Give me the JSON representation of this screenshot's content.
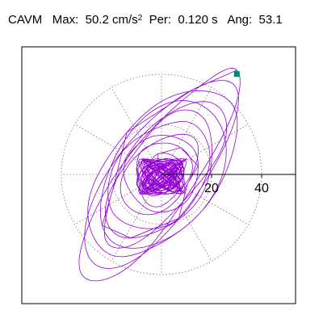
{
  "header": {
    "name": "CAVM",
    "max_label": "Max:",
    "max_value": "50.2",
    "max_unit": "cm/s",
    "max_exp": "2",
    "per_label": "Per:",
    "per_value": "0.120 s",
    "ang_label": "Ang:",
    "ang_value": "53.1"
  },
  "chart_data": {
    "type": "polar orbit (line)",
    "title": "CAVM Max: 50.2 cm/s2 Per: 0.120 s Ang: 53.1",
    "radial_ticks": [
      20,
      40
    ],
    "radial_rings": [
      20,
      40
    ],
    "radial_max": 40,
    "spokes_deg": [
      0,
      30,
      60,
      90,
      120,
      150,
      180,
      210,
      240,
      270,
      300,
      330
    ],
    "grid_style": "dotted",
    "axis": "positive x-axis drawn solid",
    "marker": {
      "x": 30.1,
      "y": 40.1,
      "shape": "square",
      "label": "max"
    },
    "trace_color": "#9400d3",
    "marker_color": "#008b6b",
    "trace": {
      "major_angle_deg": 53.1,
      "max_radius": 50.2,
      "loops": [
        {
          "a": 50.2,
          "b": 14
        },
        {
          "a": 45,
          "b": 18
        },
        {
          "a": 40,
          "b": 22
        },
        {
          "a": 36,
          "b": 14
        },
        {
          "a": 32,
          "b": 20
        },
        {
          "a": 28,
          "b": 16
        },
        {
          "a": 24,
          "b": 18
        },
        {
          "a": 20,
          "b": 12
        },
        {
          "a": 16,
          "b": 14
        },
        {
          "a": 12,
          "b": 10
        },
        {
          "a": 8,
          "b": 7
        },
        {
          "a": 5,
          "b": 4
        }
      ]
    }
  }
}
